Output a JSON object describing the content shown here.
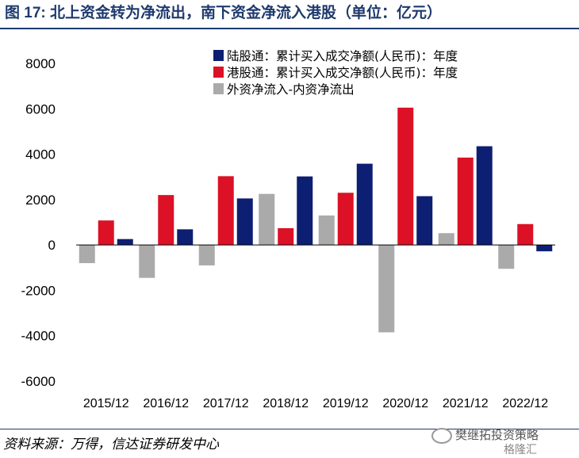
{
  "header": {
    "title": "图 17: 北上资金转为净流出，南下资金净流入港股（单位：亿元）"
  },
  "footer": {
    "source": "资料来源：万得，信达证券研发中心",
    "watermark_line1": "樊继拓投资策略",
    "watermark_line2": "格隆汇"
  },
  "colors": {
    "northbound": "#0d1f72",
    "southbound": "#dc1126",
    "net": "#aaaaaa",
    "title": "#1f3a6e"
  },
  "chart_data": {
    "type": "bar",
    "title": "",
    "xlabel": "",
    "ylabel": "",
    "ylim": [
      -6000,
      8000
    ],
    "yticks": [
      8000,
      6000,
      4000,
      2000,
      0,
      -2000,
      -4000,
      -6000
    ],
    "grid": false,
    "legend_position": "top-right",
    "categories": [
      "2015/12",
      "2016/12",
      "2017/12",
      "2018/12",
      "2019/12",
      "2020/12",
      "2021/12",
      "2022/12"
    ],
    "series": [
      {
        "name": "外资净流入-内资净流出",
        "color": "#aaaaaa",
        "values": [
          -800,
          -1450,
          -900,
          2250,
          1300,
          -3850,
          520,
          -1050
        ]
      },
      {
        "name": "港股通：累计买入成交净额(人民币)：年度",
        "color": "#dc1126",
        "values": [
          1080,
          2200,
          3030,
          740,
          2300,
          6050,
          3850,
          920
        ]
      },
      {
        "name": "陆股通：累计买入成交净额(人民币)：年度",
        "color": "#0d1f72",
        "values": [
          260,
          690,
          2050,
          3020,
          3580,
          2150,
          4350,
          -280
        ]
      }
    ],
    "legend_order": [
      2,
      1,
      0
    ]
  }
}
